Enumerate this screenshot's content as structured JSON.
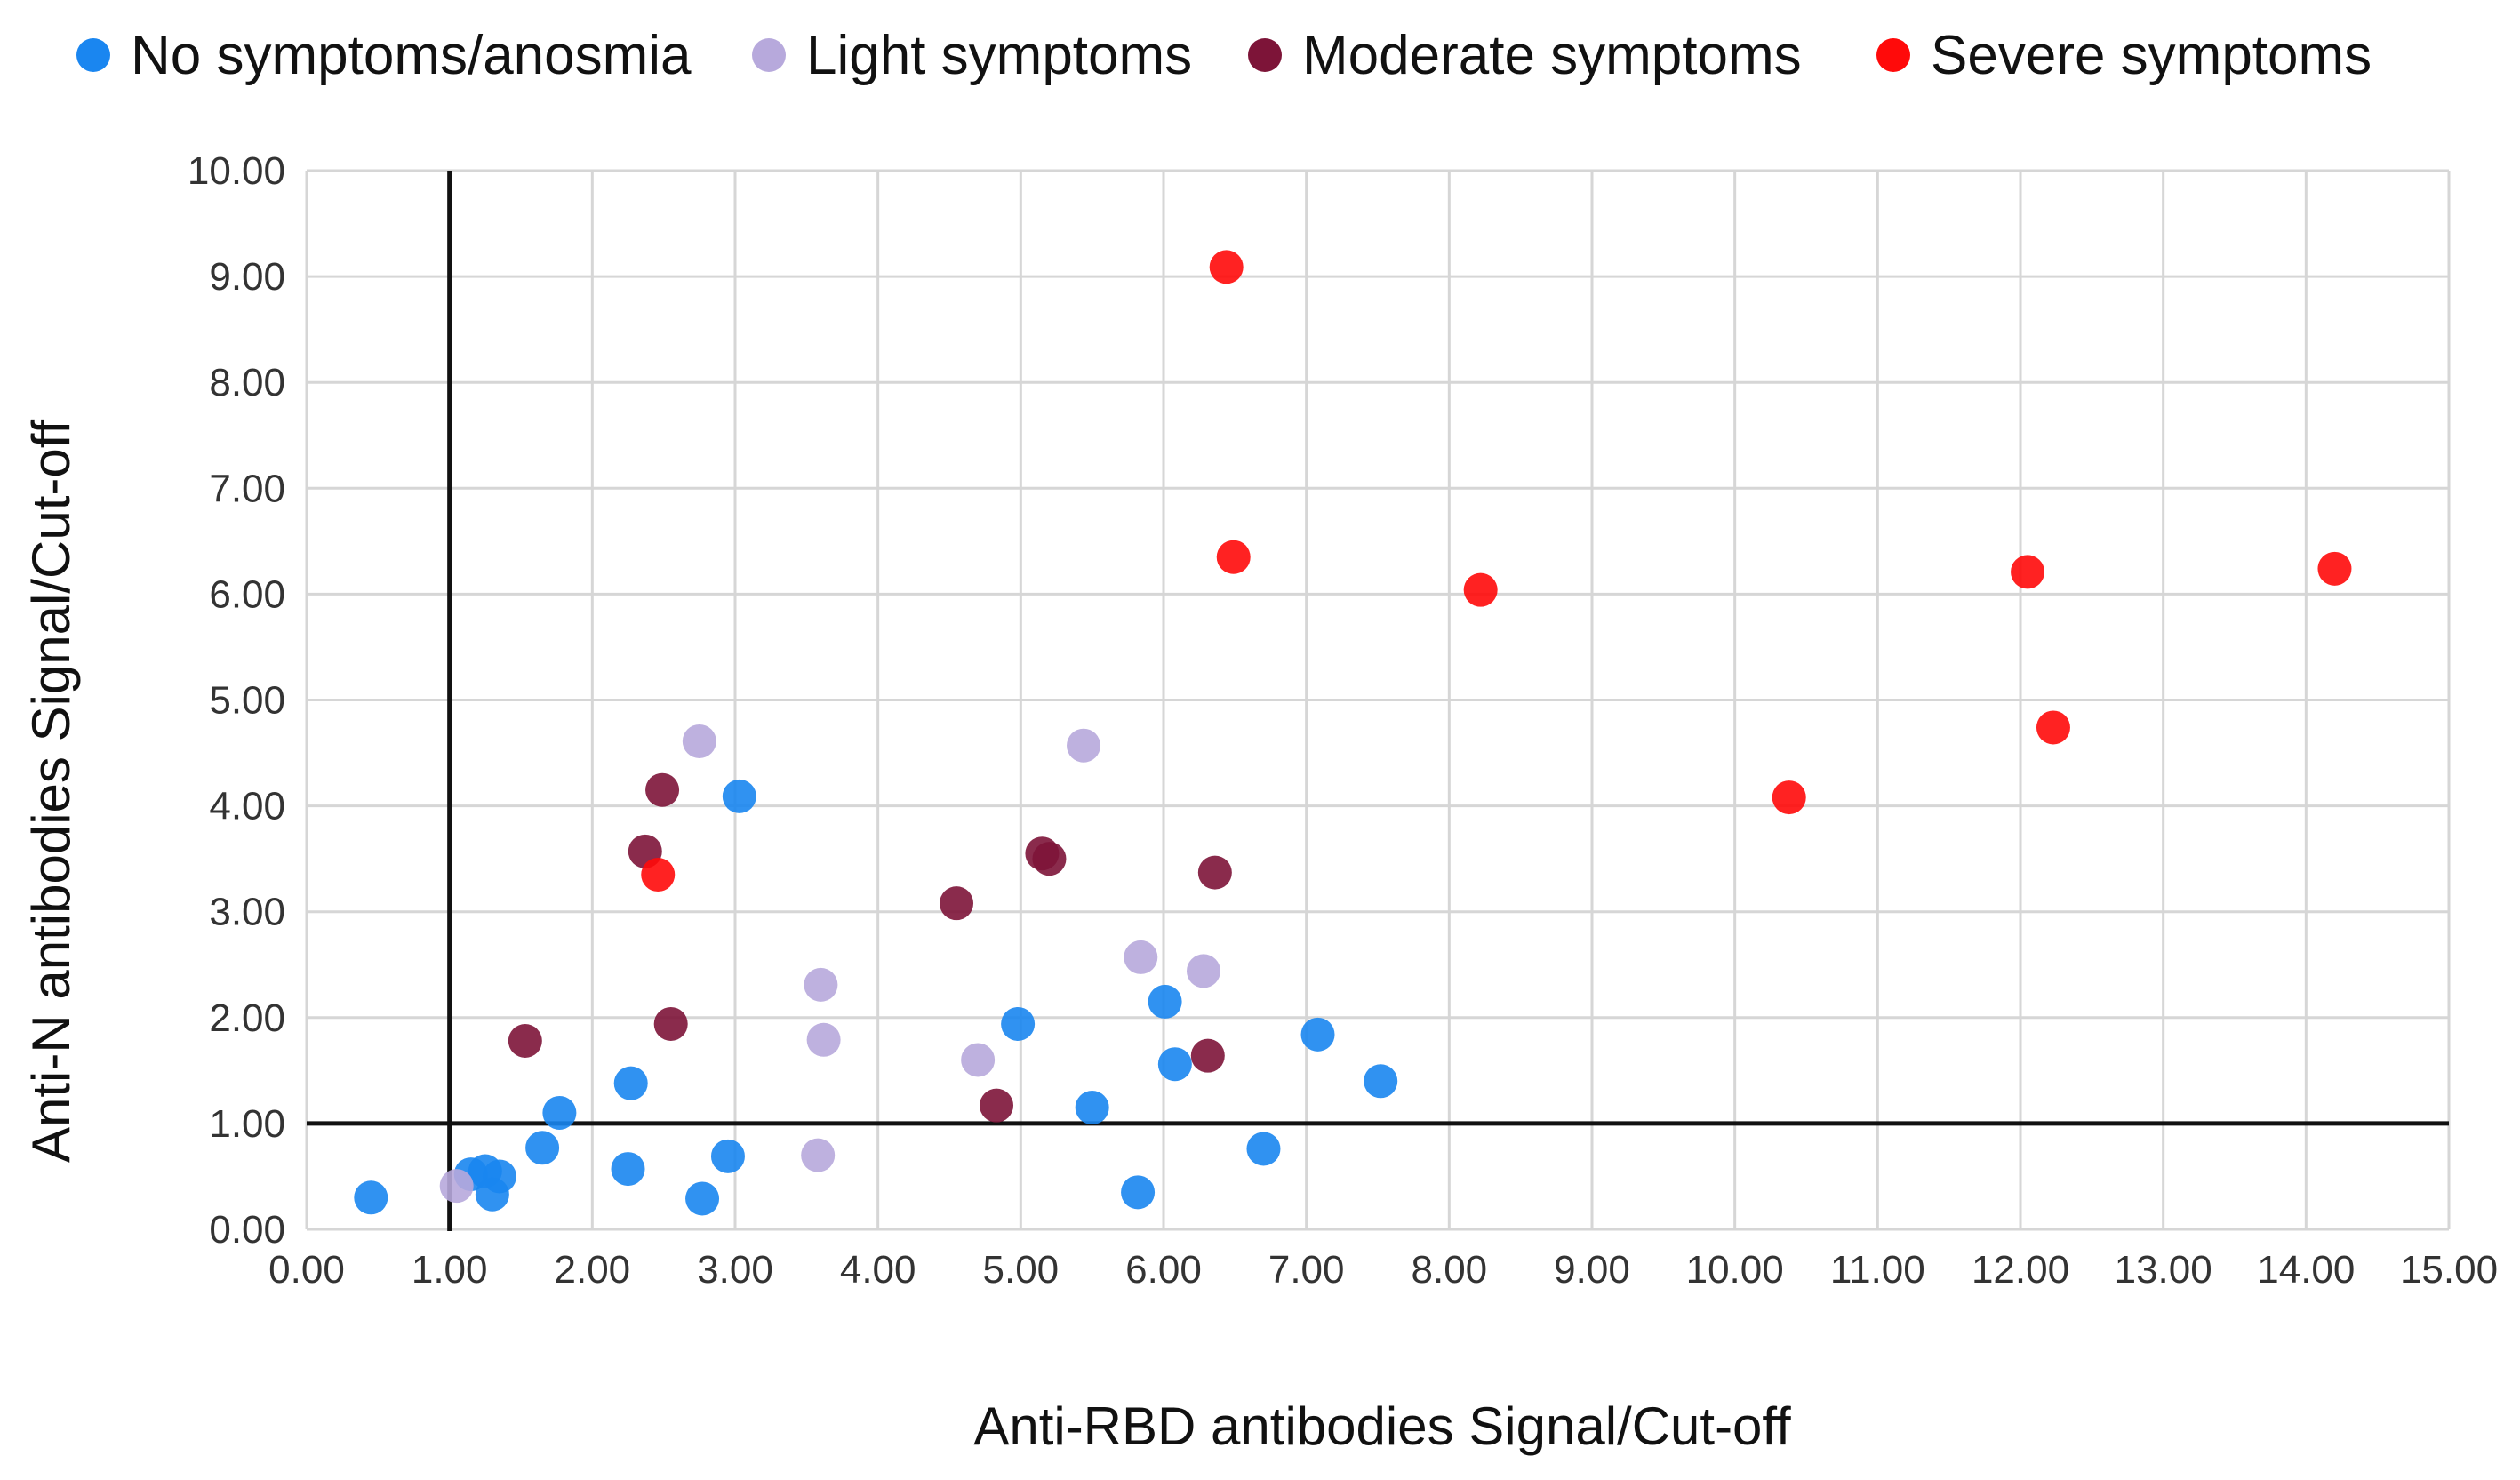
{
  "chart_data": {
    "type": "scatter",
    "xlabel": "Anti-RBD antibodies Signal/Cut-off",
    "ylabel": "Anti-N antibodies Signal/Cut-off",
    "xlim": [
      0,
      15
    ],
    "ylim": [
      0,
      10
    ],
    "x_ticks": [
      "0.00",
      "1.00",
      "2.00",
      "3.00",
      "4.00",
      "5.00",
      "6.00",
      "7.00",
      "8.00",
      "9.00",
      "10.00",
      "11.00",
      "12.00",
      "13.00",
      "14.00",
      "15.00"
    ],
    "y_ticks": [
      "0.00",
      "1.00",
      "2.00",
      "3.00",
      "4.00",
      "5.00",
      "6.00",
      "7.00",
      "8.00",
      "9.00",
      "10.00"
    ],
    "grid": true,
    "legend_position": "top",
    "reference_lines": {
      "x": 1.0,
      "y": 1.0
    },
    "series": [
      {
        "name": "No symptoms/anosmia",
        "color": "#1a86f0",
        "points": [
          [
            0.45,
            0.3
          ],
          [
            1.15,
            0.52
          ],
          [
            1.25,
            0.55
          ],
          [
            1.35,
            0.5
          ],
          [
            1.3,
            0.33
          ],
          [
            1.65,
            0.77
          ],
          [
            1.77,
            1.1
          ],
          [
            2.25,
            0.57
          ],
          [
            2.27,
            1.38
          ],
          [
            2.77,
            0.29
          ],
          [
            2.95,
            0.69
          ],
          [
            3.03,
            4.09
          ],
          [
            4.98,
            1.94
          ],
          [
            5.5,
            1.15
          ],
          [
            5.82,
            0.35
          ],
          [
            6.01,
            2.15
          ],
          [
            6.08,
            1.56
          ],
          [
            6.7,
            0.76
          ],
          [
            7.08,
            1.84
          ],
          [
            7.52,
            1.4
          ]
        ]
      },
      {
        "name": "Light symptoms",
        "color": "#b7a9dc",
        "points": [
          [
            1.05,
            0.41
          ],
          [
            2.75,
            4.61
          ],
          [
            3.58,
            0.7
          ],
          [
            3.6,
            2.31
          ],
          [
            3.62,
            1.79
          ],
          [
            4.7,
            1.6
          ],
          [
            5.44,
            4.57
          ],
          [
            5.84,
            2.57
          ],
          [
            6.28,
            2.44
          ]
        ]
      },
      {
        "name": "Moderate symptoms",
        "color": "#7d1438",
        "points": [
          [
            1.53,
            1.78
          ],
          [
            2.37,
            3.57
          ],
          [
            2.49,
            4.15
          ],
          [
            2.55,
            1.94
          ],
          [
            4.55,
            3.08
          ],
          [
            4.83,
            1.17
          ],
          [
            5.15,
            3.55
          ],
          [
            5.2,
            3.5
          ],
          [
            6.31,
            1.64
          ],
          [
            6.36,
            3.37
          ]
        ]
      },
      {
        "name": "Severe symptoms",
        "color": "#ff0a0a",
        "points": [
          [
            2.46,
            3.35
          ],
          [
            6.44,
            9.09
          ],
          [
            6.49,
            6.35
          ],
          [
            8.22,
            6.04
          ],
          [
            10.38,
            4.08
          ],
          [
            12.05,
            6.21
          ],
          [
            12.23,
            4.74
          ],
          [
            14.2,
            6.24
          ]
        ]
      }
    ]
  }
}
